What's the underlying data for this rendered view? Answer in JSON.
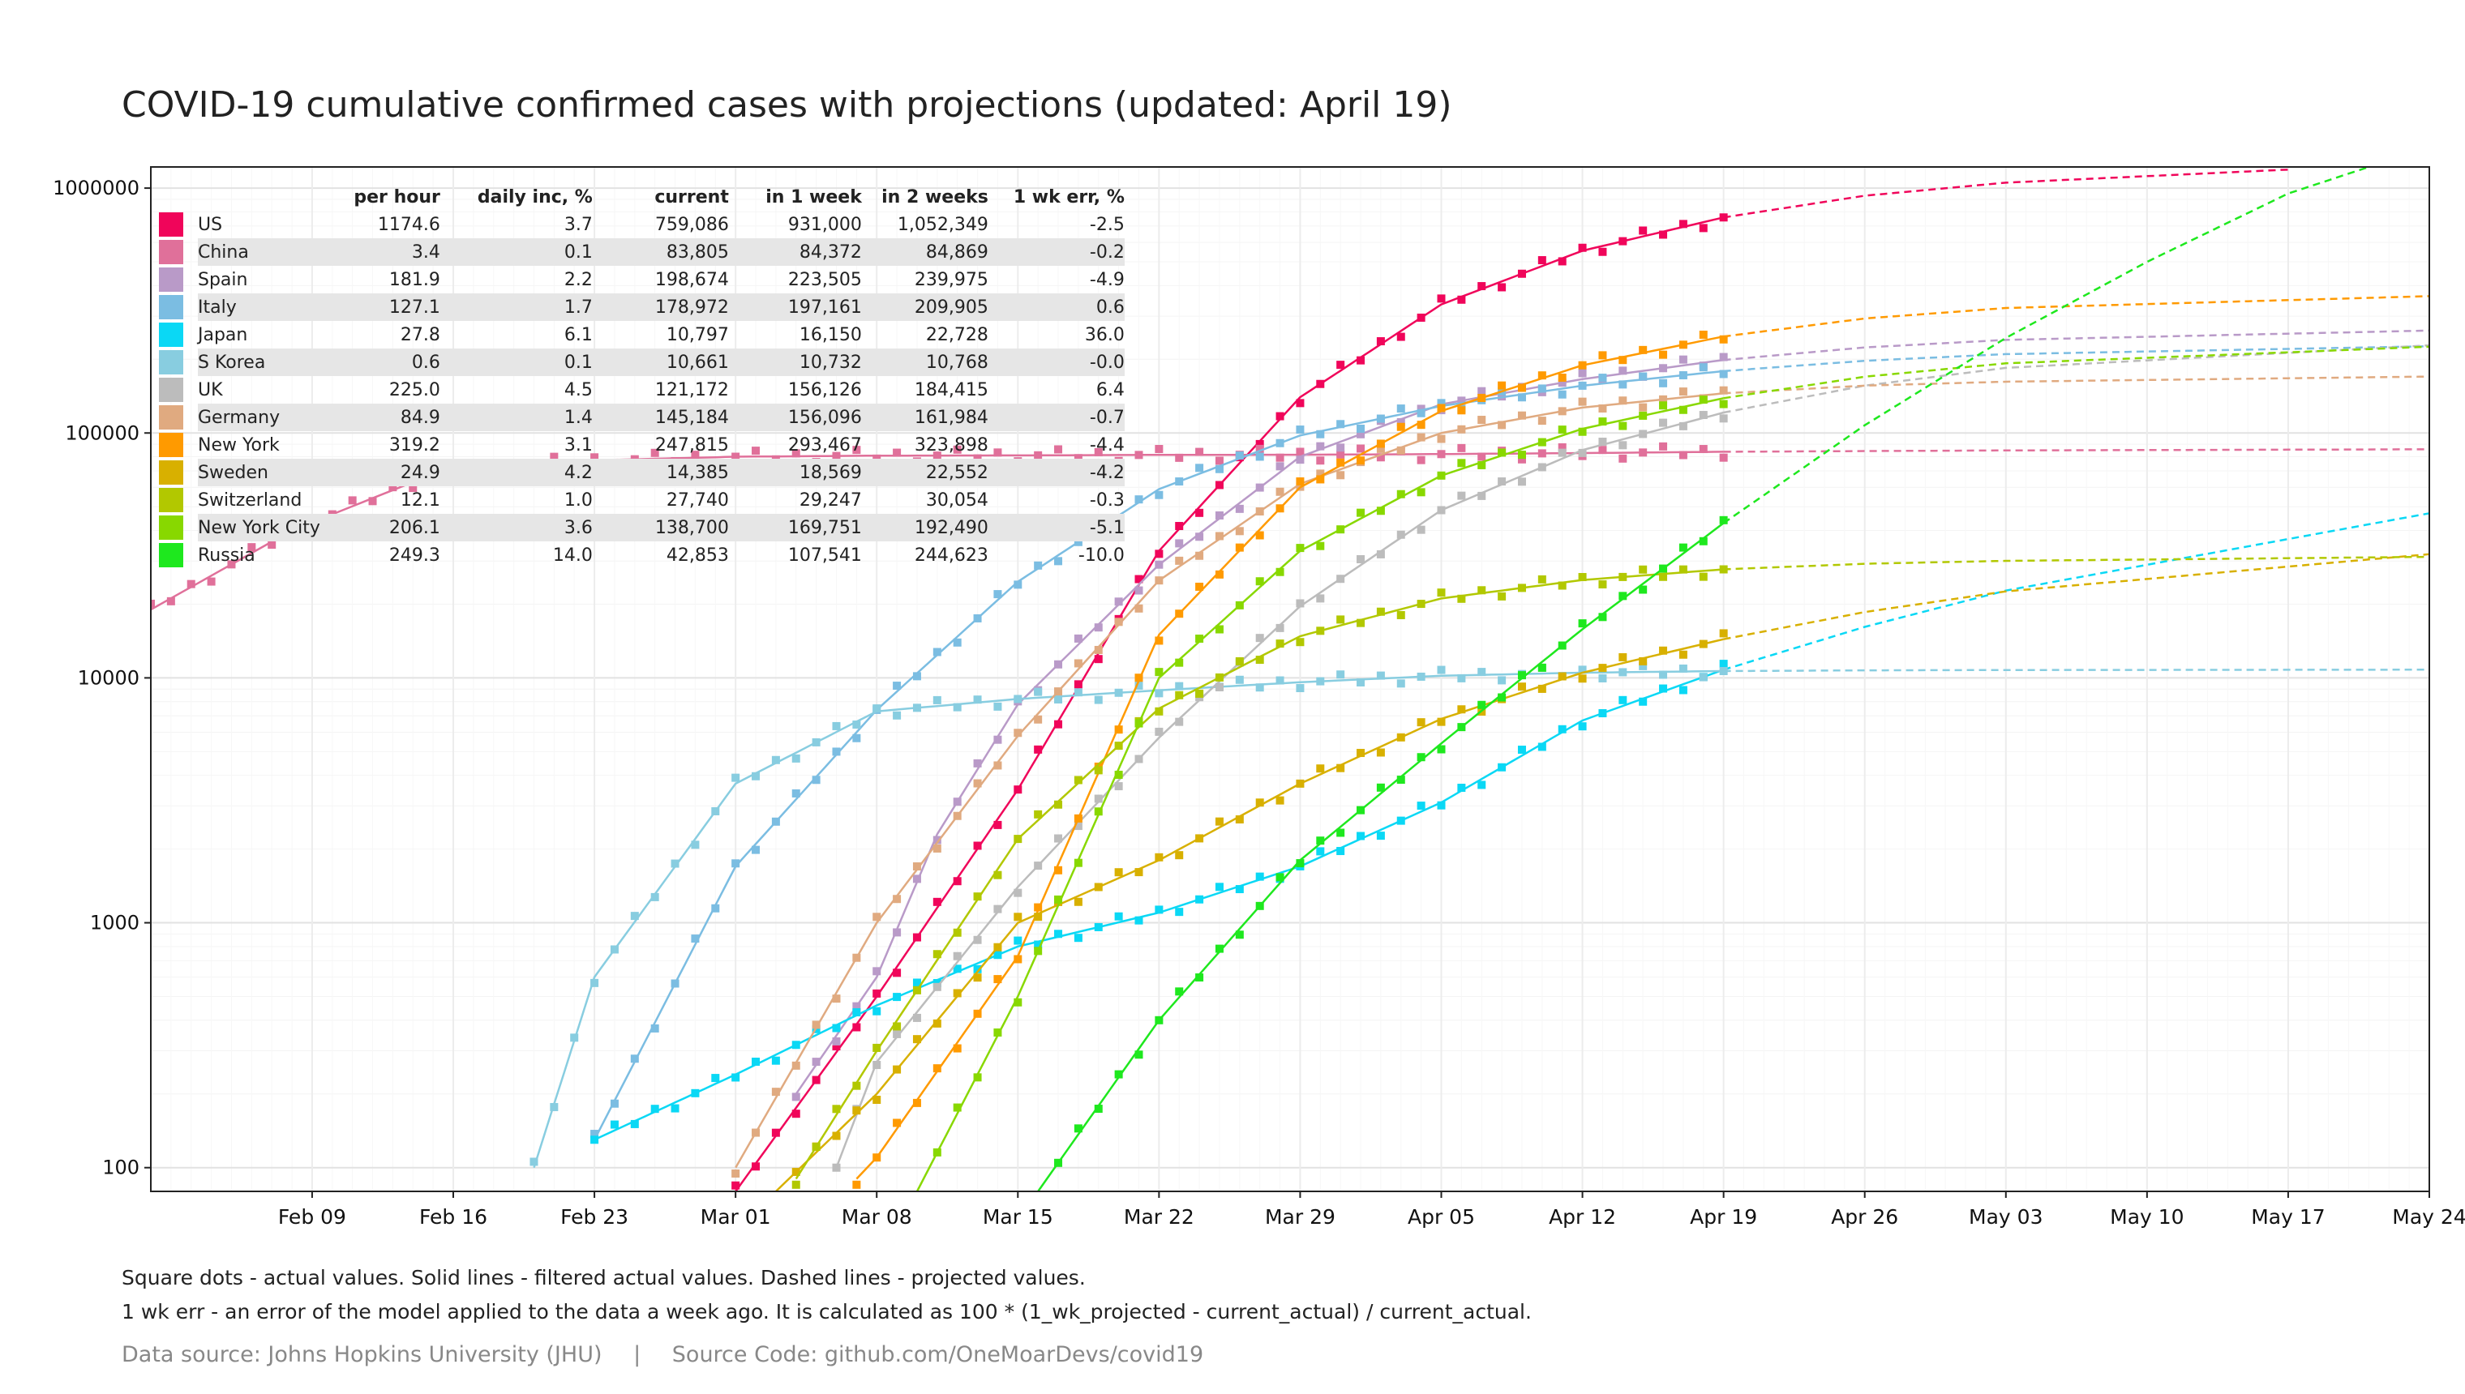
{
  "title": "COVID-19 cumulative confirmed cases with projections (updated: April 19)",
  "notes": {
    "line1": "Square dots - actual values. Solid lines - filtered actual values. Dashed lines - projected values.",
    "line2": "1 wk err - an error of the model applied to the data a week ago. It is calculated as 100 * (1_wk_projected - current_actual) / current_actual."
  },
  "footer": {
    "source": "Data source: Johns Hopkins University (JHU)",
    "separator": "|",
    "code": "Source Code: github.com/OneMoarDevs/covid19"
  },
  "chart_data": {
    "type": "line",
    "title": "COVID-19 cumulative confirmed cases with projections (updated: April 19)",
    "y_scale": "log",
    "ylim": [
      80,
      1220000
    ],
    "xlim": [
      "2020-02-01",
      "2020-05-24"
    ],
    "y_ticks": [
      "1000000",
      "100000",
      "10000",
      "1000",
      "100"
    ],
    "y_tick_values": [
      1000000,
      100000,
      10000,
      1000,
      100
    ],
    "x_ticks": [
      "Feb 09",
      "Feb 16",
      "Feb 23",
      "Mar 01",
      "Mar 08",
      "Mar 15",
      "Mar 22",
      "Mar 29",
      "Apr 05",
      "Apr 12",
      "Apr 19",
      "Apr 26",
      "May 03",
      "May 10",
      "May 17",
      "May 24"
    ],
    "x_tick_dates": [
      "2020-02-09",
      "2020-02-16",
      "2020-02-23",
      "2020-03-01",
      "2020-03-08",
      "2020-03-15",
      "2020-03-22",
      "2020-03-29",
      "2020-04-05",
      "2020-04-12",
      "2020-04-19",
      "2020-04-26",
      "2020-05-03",
      "2020-05-10",
      "2020-05-17",
      "2020-05-24"
    ],
    "last_actual_date": "2020-04-19",
    "grid": true,
    "legend_placement": "top-left",
    "table_headers": [
      "per hour",
      "daily inc, %",
      "current",
      "in 1 week",
      "in 2 weeks",
      "1 wk err, %"
    ],
    "series": [
      {
        "name": "US",
        "color": "#f0055a",
        "per_hour": "1174.6",
        "daily_inc": "3.7",
        "current": "759,086",
        "in_1_week": "931,000",
        "in_2_weeks": "1,052,349",
        "err": "-2.5",
        "points": [
          [
            "2020-03-01",
            80
          ],
          [
            "2020-03-08",
            500
          ],
          [
            "2020-03-15",
            3500
          ],
          [
            "2020-03-22",
            33000
          ],
          [
            "2020-03-29",
            140000
          ],
          [
            "2020-04-05",
            335000
          ],
          [
            "2020-04-12",
            555000
          ],
          [
            "2020-04-19",
            759086
          ],
          [
            "2020-04-26",
            931000
          ],
          [
            "2020-05-03",
            1052349
          ],
          [
            "2020-05-17",
            1190000
          ]
        ]
      },
      {
        "name": "China",
        "color": "#e0709a",
        "per_hour": "3.4",
        "daily_inc": "0.1",
        "current": "83,805",
        "in_1_week": "84,372",
        "in_2_weeks": "84,869",
        "err": "-0.2",
        "points": [
          [
            "2020-02-01",
            19000
          ],
          [
            "2020-02-08",
            40000
          ],
          [
            "2020-02-15",
            68000
          ],
          [
            "2020-02-22",
            77000
          ],
          [
            "2020-03-01",
            80000
          ],
          [
            "2020-03-08",
            80800
          ],
          [
            "2020-03-15",
            81000
          ],
          [
            "2020-03-22",
            81400
          ],
          [
            "2020-03-29",
            81500
          ],
          [
            "2020-04-05",
            82000
          ],
          [
            "2020-04-12",
            82800
          ],
          [
            "2020-04-19",
            83805
          ],
          [
            "2020-04-26",
            84372
          ],
          [
            "2020-05-03",
            84869
          ],
          [
            "2020-05-24",
            85800
          ]
        ]
      },
      {
        "name": "Spain",
        "color": "#b99ac8",
        "per_hour": "181.9",
        "daily_inc": "2.2",
        "current": "198,674",
        "in_1_week": "223,505",
        "in_2_weeks": "239,975",
        "err": "-4.9",
        "points": [
          [
            "2020-03-04",
            200
          ],
          [
            "2020-03-08",
            600
          ],
          [
            "2020-03-11",
            2300
          ],
          [
            "2020-03-15",
            7800
          ],
          [
            "2020-03-22",
            29000
          ],
          [
            "2020-03-29",
            80000
          ],
          [
            "2020-04-05",
            131000
          ],
          [
            "2020-04-12",
            166000
          ],
          [
            "2020-04-19",
            198674
          ],
          [
            "2020-04-26",
            223505
          ],
          [
            "2020-05-03",
            239975
          ],
          [
            "2020-05-24",
            262000
          ]
        ]
      },
      {
        "name": "Italy",
        "color": "#7bbde2",
        "per_hour": "127.1",
        "daily_inc": "1.7",
        "current": "178,972",
        "in_1_week": "197,161",
        "in_2_weeks": "209,905",
        "err": "0.6",
        "points": [
          [
            "2020-02-23",
            130
          ],
          [
            "2020-03-01",
            1700
          ],
          [
            "2020-03-08",
            7400
          ],
          [
            "2020-03-15",
            24700
          ],
          [
            "2020-03-22",
            59000
          ],
          [
            "2020-03-29",
            97700
          ],
          [
            "2020-04-05",
            128900
          ],
          [
            "2020-04-12",
            156000
          ],
          [
            "2020-04-19",
            178972
          ],
          [
            "2020-04-26",
            197161
          ],
          [
            "2020-05-03",
            209905
          ],
          [
            "2020-05-24",
            226000
          ]
        ]
      },
      {
        "name": "Japan",
        "color": "#0ad8f5",
        "per_hour": "27.8",
        "daily_inc": "6.1",
        "current": "10,797",
        "in_1_week": "16,150",
        "in_2_weeks": "22,728",
        "err": "36.0",
        "points": [
          [
            "2020-02-23",
            130
          ],
          [
            "2020-03-01",
            240
          ],
          [
            "2020-03-08",
            460
          ],
          [
            "2020-03-15",
            800
          ],
          [
            "2020-03-22",
            1100
          ],
          [
            "2020-03-29",
            1700
          ],
          [
            "2020-04-05",
            3100
          ],
          [
            "2020-04-12",
            6700
          ],
          [
            "2020-04-19",
            10797
          ],
          [
            "2020-04-26",
            16150
          ],
          [
            "2020-05-03",
            22728
          ],
          [
            "2020-05-24",
            47000
          ]
        ]
      },
      {
        "name": "S Korea",
        "color": "#88cde0",
        "per_hour": "0.6",
        "daily_inc": "0.1",
        "current": "10,661",
        "in_1_week": "10,732",
        "in_2_weeks": "10,768",
        "err": "-0.0",
        "points": [
          [
            "2020-02-20",
            100
          ],
          [
            "2020-02-23",
            600
          ],
          [
            "2020-03-01",
            3700
          ],
          [
            "2020-03-08",
            7300
          ],
          [
            "2020-03-15",
            8200
          ],
          [
            "2020-03-22",
            8900
          ],
          [
            "2020-03-29",
            9600
          ],
          [
            "2020-04-05",
            10200
          ],
          [
            "2020-04-12",
            10500
          ],
          [
            "2020-04-19",
            10661
          ],
          [
            "2020-04-26",
            10732
          ],
          [
            "2020-05-03",
            10768
          ],
          [
            "2020-05-24",
            10800
          ]
        ]
      },
      {
        "name": "UK",
        "color": "#bcbcbc",
        "per_hour": "225.0",
        "daily_inc": "4.5",
        "current": "121,172",
        "in_1_week": "156,126",
        "in_2_weeks": "184,415",
        "err": "6.4",
        "points": [
          [
            "2020-03-06",
            100
          ],
          [
            "2020-03-08",
            270
          ],
          [
            "2020-03-15",
            1400
          ],
          [
            "2020-03-22",
            5700
          ],
          [
            "2020-03-29",
            19600
          ],
          [
            "2020-04-05",
            48400
          ],
          [
            "2020-04-12",
            85200
          ],
          [
            "2020-04-19",
            121172
          ],
          [
            "2020-04-26",
            156126
          ],
          [
            "2020-05-03",
            184415
          ],
          [
            "2020-05-24",
            228000
          ]
        ]
      },
      {
        "name": "Germany",
        "color": "#e0aa80",
        "per_hour": "84.9",
        "daily_inc": "1.4",
        "current": "145,184",
        "in_1_week": "156,096",
        "in_2_weeks": "161,984",
        "err": "-0.7",
        "points": [
          [
            "2020-03-01",
            100
          ],
          [
            "2020-03-08",
            1000
          ],
          [
            "2020-03-15",
            5800
          ],
          [
            "2020-03-22",
            25000
          ],
          [
            "2020-03-29",
            62000
          ],
          [
            "2020-04-05",
            100000
          ],
          [
            "2020-04-12",
            127000
          ],
          [
            "2020-04-19",
            145184
          ],
          [
            "2020-04-26",
            156096
          ],
          [
            "2020-05-03",
            161984
          ],
          [
            "2020-05-24",
            170000
          ]
        ]
      },
      {
        "name": "New York",
        "color": "#ff9a00",
        "per_hour": "319.2",
        "daily_inc": "3.1",
        "current": "247,815",
        "in_1_week": "293,467",
        "in_2_weeks": "323,898",
        "err": "-4.4",
        "points": [
          [
            "2020-03-07",
            90
          ],
          [
            "2020-03-08",
            110
          ],
          [
            "2020-03-15",
            730
          ],
          [
            "2020-03-22",
            15000
          ],
          [
            "2020-03-29",
            60000
          ],
          [
            "2020-04-05",
            123000
          ],
          [
            "2020-04-12",
            189000
          ],
          [
            "2020-04-19",
            247815
          ],
          [
            "2020-04-26",
            293467
          ],
          [
            "2020-05-03",
            323898
          ],
          [
            "2020-05-24",
            362000
          ]
        ]
      },
      {
        "name": "Sweden",
        "color": "#d8b000",
        "per_hour": "24.9",
        "daily_inc": "4.2",
        "current": "14,385",
        "in_1_week": "18,569",
        "in_2_weeks": "22,552",
        "err": "-4.2",
        "points": [
          [
            "2020-03-03",
            80
          ],
          [
            "2020-03-08",
            200
          ],
          [
            "2020-03-15",
            1000
          ],
          [
            "2020-03-22",
            1800
          ],
          [
            "2020-03-29",
            3700
          ],
          [
            "2020-04-05",
            6800
          ],
          [
            "2020-04-12",
            10500
          ],
          [
            "2020-04-19",
            14385
          ],
          [
            "2020-04-26",
            18569
          ],
          [
            "2020-05-03",
            22552
          ],
          [
            "2020-05-24",
            32000
          ]
        ]
      },
      {
        "name": "Switzerland",
        "color": "#b2c800",
        "per_hour": "12.1",
        "daily_inc": "1.0",
        "current": "27,740",
        "in_1_week": "29,247",
        "in_2_weeks": "30,054",
        "err": "-0.3",
        "points": [
          [
            "2020-03-04",
            90
          ],
          [
            "2020-03-08",
            300
          ],
          [
            "2020-03-15",
            2200
          ],
          [
            "2020-03-22",
            7500
          ],
          [
            "2020-03-29",
            14800
          ],
          [
            "2020-04-05",
            21100
          ],
          [
            "2020-04-12",
            25100
          ],
          [
            "2020-04-19",
            27740
          ],
          [
            "2020-04-26",
            29247
          ],
          [
            "2020-05-03",
            30054
          ],
          [
            "2020-05-24",
            31200
          ]
        ]
      },
      {
        "name": "New York City",
        "color": "#88d800",
        "per_hour": "206.1",
        "daily_inc": "3.6",
        "current": "138,700",
        "in_1_week": "169,751",
        "in_2_weeks": "192,490",
        "err": "-5.1",
        "points": [
          [
            "2020-03-10",
            80
          ],
          [
            "2020-03-15",
            500
          ],
          [
            "2020-03-22",
            10000
          ],
          [
            "2020-03-29",
            33000
          ],
          [
            "2020-04-05",
            67000
          ],
          [
            "2020-04-12",
            104000
          ],
          [
            "2020-04-19",
            138700
          ],
          [
            "2020-04-26",
            169751
          ],
          [
            "2020-05-03",
            192490
          ],
          [
            "2020-05-24",
            225000
          ]
        ]
      },
      {
        "name": "Russia",
        "color": "#1ee81e",
        "per_hour": "249.3",
        "daily_inc": "14.0",
        "current": "42,853",
        "in_1_week": "107,541",
        "in_2_weeks": "244,623",
        "err": "-10.0",
        "points": [
          [
            "2020-03-16",
            80
          ],
          [
            "2020-03-22",
            400
          ],
          [
            "2020-03-29",
            1800
          ],
          [
            "2020-04-05",
            5400
          ],
          [
            "2020-04-12",
            15800
          ],
          [
            "2020-04-19",
            42853
          ],
          [
            "2020-04-26",
            107541
          ],
          [
            "2020-05-03",
            244623
          ],
          [
            "2020-05-10",
            500000
          ],
          [
            "2020-05-17",
            950000
          ],
          [
            "2020-05-21",
            1220000
          ]
        ]
      }
    ]
  }
}
